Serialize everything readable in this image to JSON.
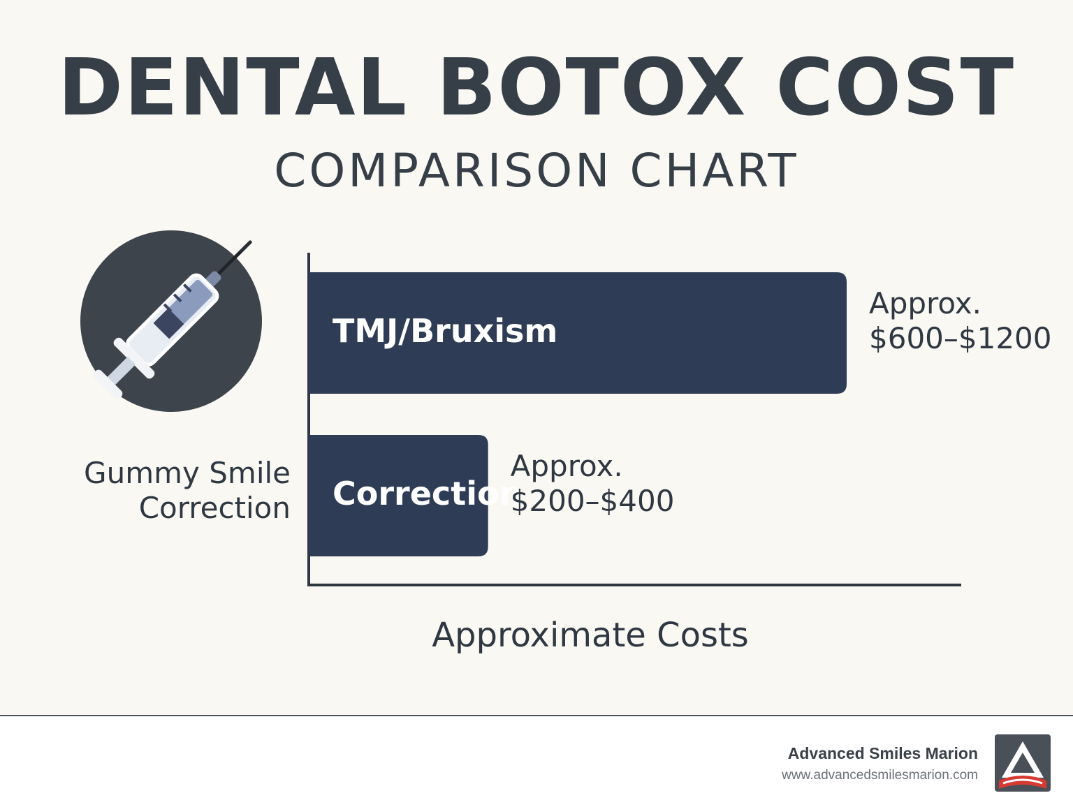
{
  "title": "DENTAL BOTOX COST",
  "subtitle": "COMPARISON CHART",
  "icon": "syringe-icon",
  "colors": {
    "bar": "#2e3c55",
    "background": "#f9f8f3",
    "text": "#363e47",
    "logo_red": "#d63a32"
  },
  "chart_data": {
    "type": "bar",
    "orientation": "horizontal",
    "title": "DENTAL BOTOX COST",
    "subtitle": "COMPARISON CHART",
    "xlabel": "Approximate Costs",
    "ylabel": "",
    "categories": [
      "TMJ/Bruxism",
      "Gummy Smile Correction"
    ],
    "bars": [
      {
        "inside_label": "TMJ/Bruxism",
        "side_label": "",
        "value_label": "Approx.\n$600–$1200",
        "min": 600,
        "max": 1200,
        "value": 1200
      },
      {
        "inside_label": "Correction",
        "side_label": "Gummy Smile\nCorrection",
        "value_label": "Approx.\n$200–$400",
        "min": 200,
        "max": 400,
        "value": 400
      }
    ],
    "grid": false,
    "legend": "none"
  },
  "footer": {
    "brand_name": "Advanced Smiles Marion",
    "brand_url": "www.advancedsmilesmarion.com",
    "logo_icon": "advanced-smiles-logo-icon"
  }
}
